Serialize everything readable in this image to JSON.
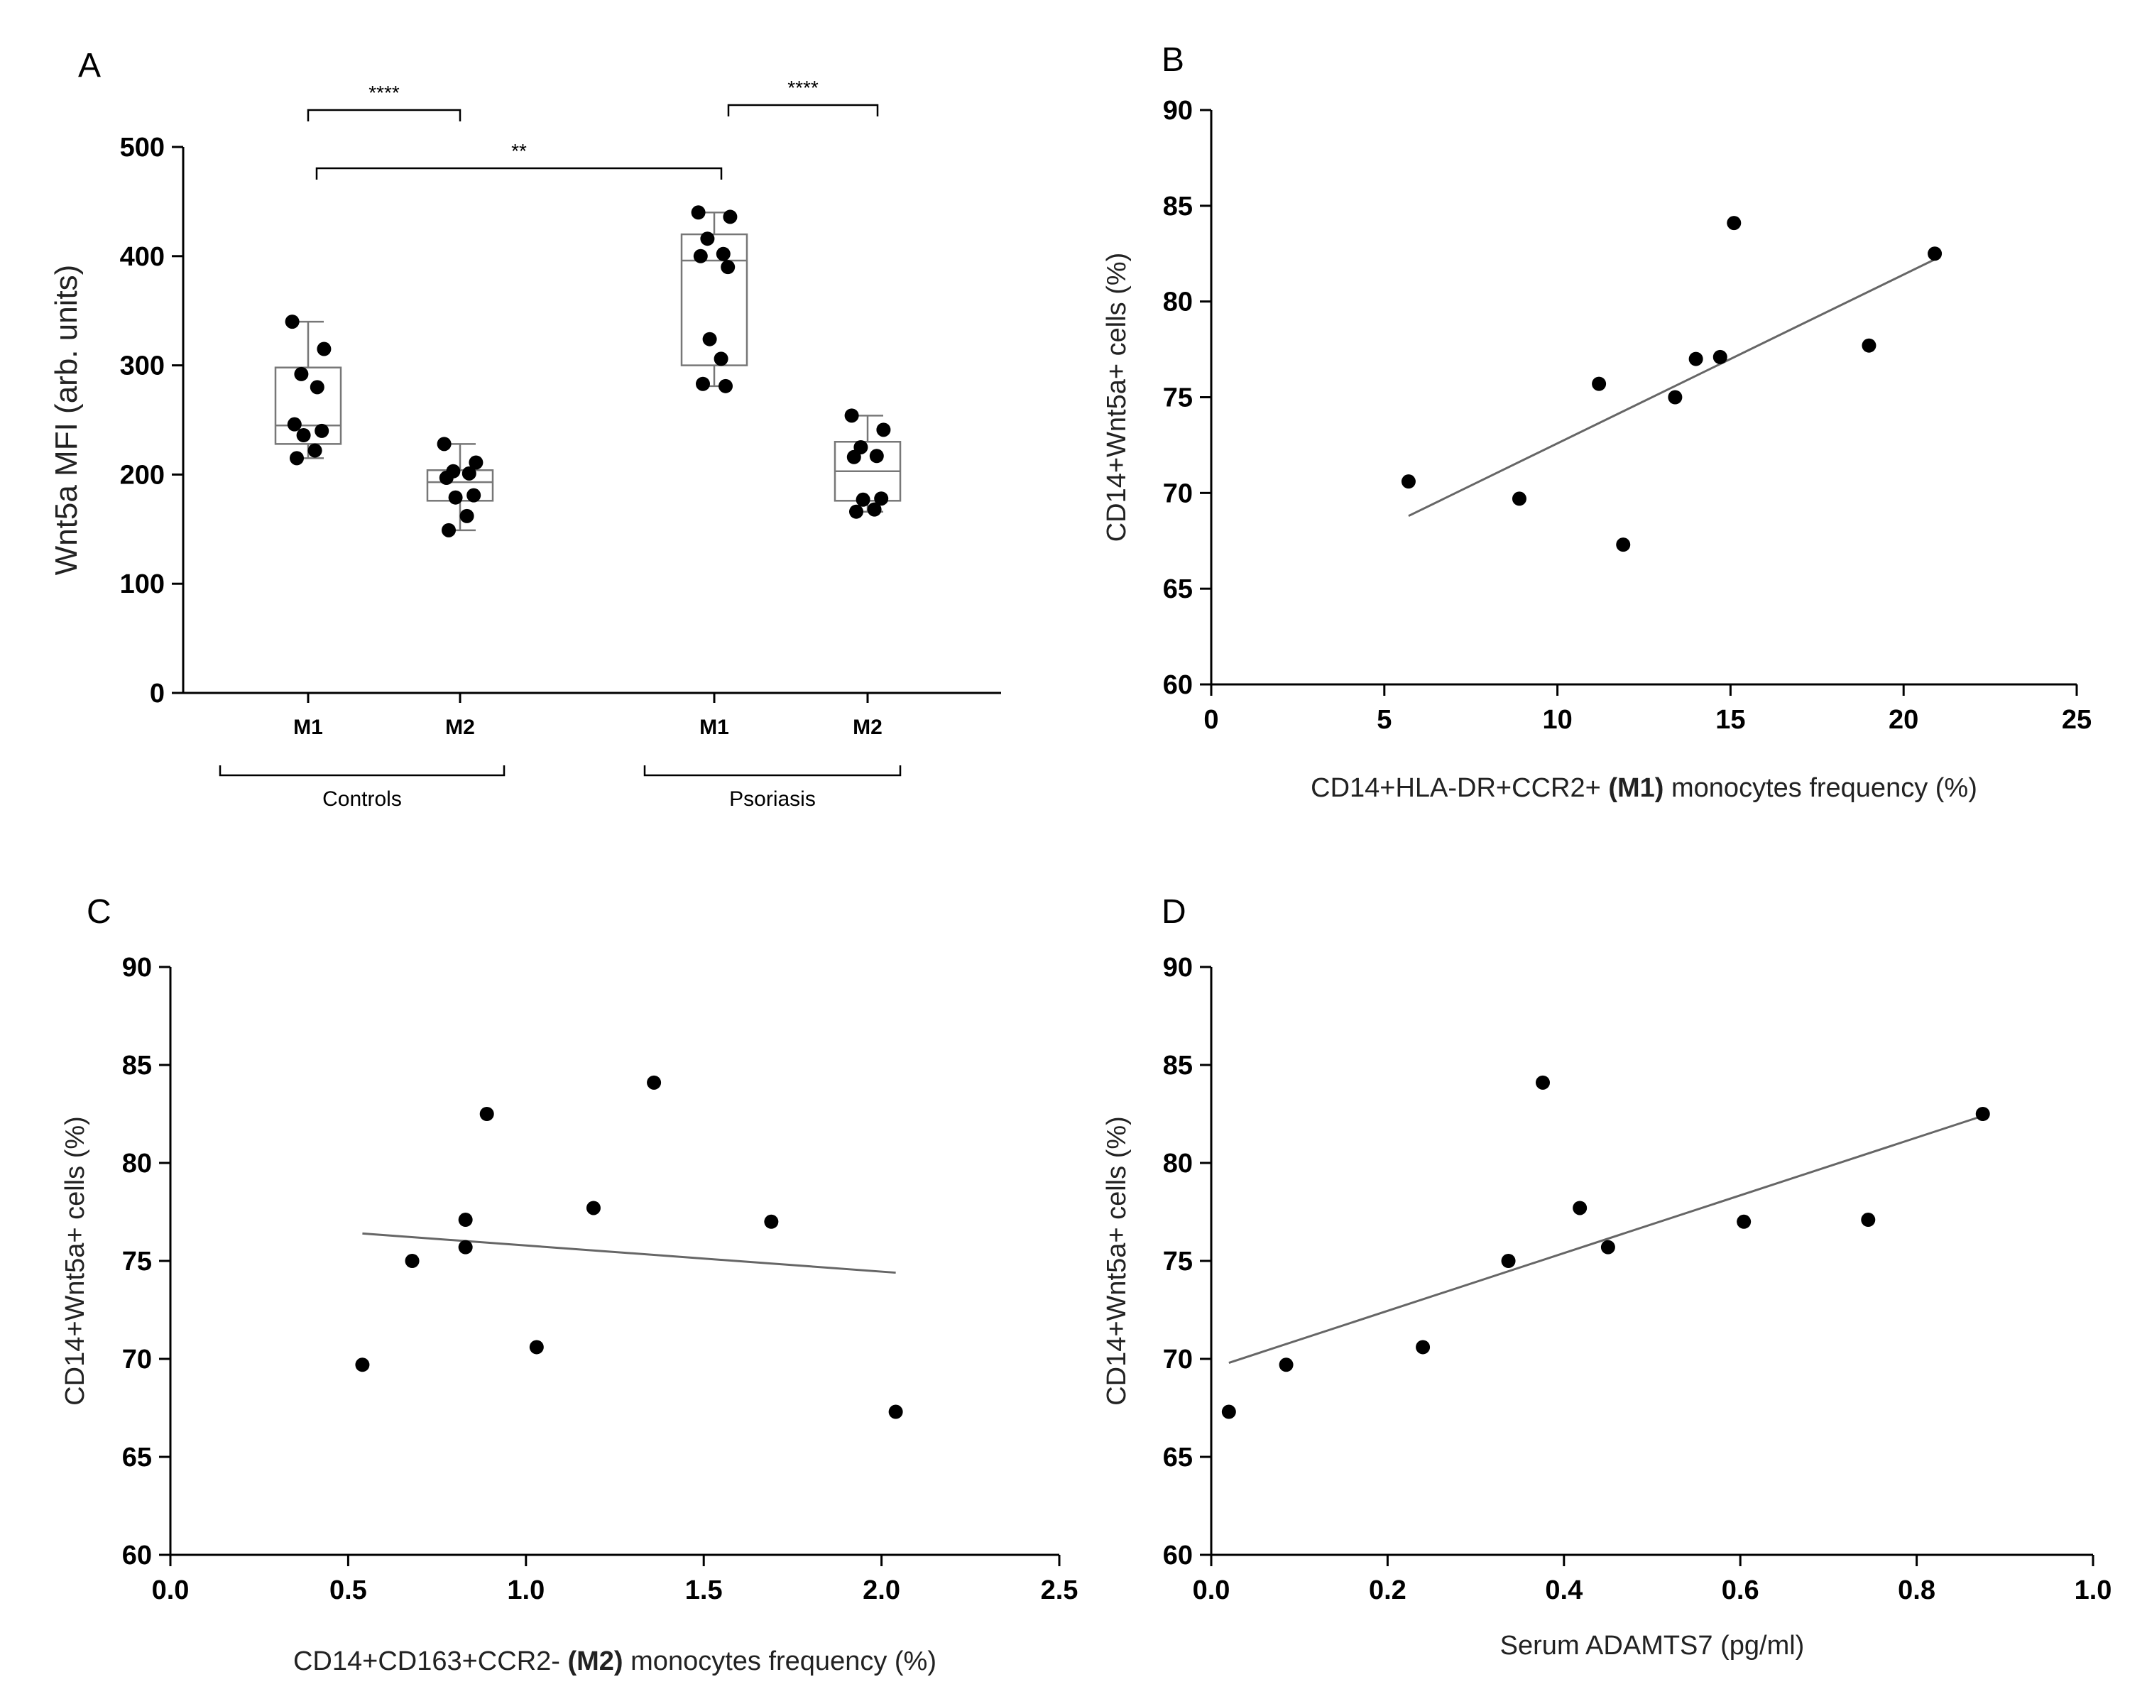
{
  "chart_data": [
    {
      "panel": "A",
      "type": "box",
      "ylabel": "Wnt5a MFI (arb. units)",
      "ylim": [
        0,
        500
      ],
      "yticks": [
        0,
        100,
        200,
        300,
        400,
        500
      ],
      "groups": [
        {
          "name": "Controls",
          "categories": [
            {
              "label": "M1",
              "min": 215,
              "q1": 228,
              "median": 245,
              "q3": 298,
              "max": 340,
              "points": [
                340,
                315,
                292,
                280,
                246,
                240,
                236,
                222,
                215
              ]
            },
            {
              "label": "M2",
              "min": 149,
              "q1": 176,
              "median": 193,
              "q3": 204,
              "max": 228,
              "points": [
                228,
                211,
                203,
                201,
                197,
                181,
                179,
                162,
                149
              ]
            }
          ]
        },
        {
          "name": "Psoriasis",
          "categories": [
            {
              "label": "M1",
              "min": 281,
              "q1": 300,
              "median": 396,
              "q3": 420,
              "max": 440,
              "points": [
                440,
                436,
                416,
                402,
                400,
                390,
                324,
                306,
                283,
                281
              ]
            },
            {
              "label": "M2",
              "min": 166,
              "q1": 176,
              "median": 203,
              "q3": 230,
              "max": 254,
              "points": [
                254,
                241,
                225,
                217,
                216,
                178,
                177,
                168,
                166
              ]
            }
          ]
        }
      ],
      "significance": [
        {
          "label": "****",
          "between": "Controls M1 – Controls M2"
        },
        {
          "label": "**",
          "between": "Controls M1 – Psoriasis M1"
        },
        {
          "label": "****",
          "between": "Psoriasis M1 – Psoriasis M2"
        }
      ]
    },
    {
      "panel": "B",
      "type": "scatter",
      "ylabel": "CD14+Wnt5a+ cells (%)",
      "xlabel_parts": [
        "CD14+HLA-DR+CCR2+ ",
        "(M1)",
        " monocytes frequency (%)"
      ],
      "xlim": [
        0,
        25
      ],
      "xticks": [
        0,
        5,
        10,
        15,
        20,
        25
      ],
      "ylim": [
        60,
        90
      ],
      "yticks": [
        60,
        65,
        70,
        75,
        80,
        85,
        90
      ],
      "x": [
        5.7,
        8.9,
        11.2,
        11.9,
        13.4,
        14.0,
        14.7,
        15.1,
        19.0,
        20.9
      ],
      "y": [
        70.6,
        69.7,
        75.7,
        67.3,
        75.0,
        77.0,
        77.1,
        84.1,
        77.7,
        82.5
      ],
      "fit": {
        "x": [
          5.7,
          20.9
        ],
        "y": [
          68.8,
          82.2
        ]
      }
    },
    {
      "panel": "C",
      "type": "scatter",
      "ylabel": "CD14+Wnt5a+ cells (%)",
      "xlabel_parts": [
        "CD14+CD163+CCR2- ",
        "(M2)",
        " monocytes frequency (%)"
      ],
      "xlim": [
        0,
        2.5
      ],
      "xticks": [
        "0.0",
        "0.5",
        "1.0",
        "1.5",
        "2.0",
        "2.5"
      ],
      "ylim": [
        60,
        90
      ],
      "yticks": [
        60,
        65,
        70,
        75,
        80,
        85,
        90
      ],
      "x": [
        0.54,
        0.68,
        0.83,
        0.83,
        0.89,
        1.03,
        1.19,
        1.36,
        1.69,
        2.04
      ],
      "y": [
        69.7,
        75.0,
        77.1,
        75.7,
        82.5,
        70.6,
        77.7,
        84.1,
        77.0,
        67.3
      ],
      "fit": {
        "x": [
          0.54,
          2.04
        ],
        "y": [
          76.4,
          74.4
        ]
      }
    },
    {
      "panel": "D",
      "type": "scatter",
      "ylabel": "CD14+Wnt5a+ cells (%)",
      "xlabel": "Serum  ADAMTS7 (pg/ml)",
      "xlim": [
        0,
        1.0
      ],
      "xticks": [
        "0.0",
        "0.2",
        "0.4",
        "0.6",
        "0.8",
        "1.0"
      ],
      "ylim": [
        60,
        90
      ],
      "yticks": [
        60,
        65,
        70,
        75,
        80,
        85,
        90
      ],
      "x": [
        0.02,
        0.085,
        0.24,
        0.337,
        0.376,
        0.418,
        0.45,
        0.604,
        0.745,
        0.875
      ],
      "y": [
        67.3,
        69.7,
        70.6,
        75.0,
        84.1,
        77.7,
        75.7,
        77.0,
        77.1,
        82.5
      ],
      "fit": {
        "x": [
          0.02,
          0.875
        ],
        "y": [
          69.8,
          82.4
        ]
      }
    }
  ]
}
